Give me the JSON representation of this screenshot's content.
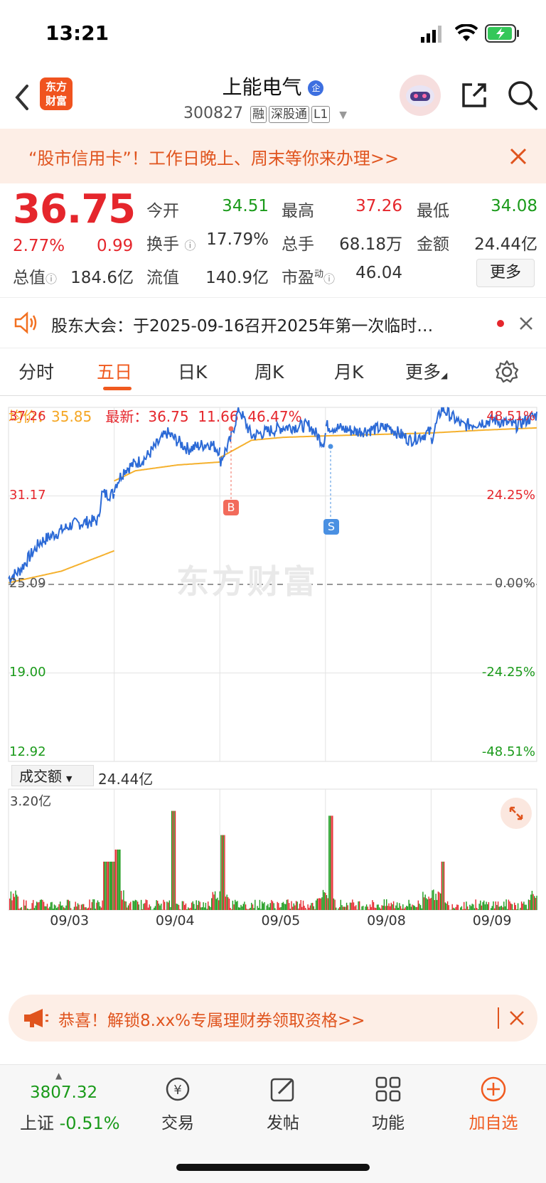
{
  "status_bar": {
    "time": "13:21"
  },
  "header": {
    "logo_text_line1": "东方",
    "logo_text_line2": "财富",
    "stock_name": "上能电气",
    "stock_code": "300827",
    "tags": [
      "融",
      "深股通",
      "L1"
    ]
  },
  "banner": {
    "text": "“股市信用卡”！工作日晚上、周末等你来办理>>"
  },
  "quote": {
    "price": "36.75",
    "change_pct": "2.77%",
    "change": "0.99",
    "open_label": "今开",
    "open": "34.51",
    "high_label": "最高",
    "high": "37.26",
    "low_label": "最低",
    "low": "34.08",
    "turnover_label": "换手",
    "turnover": "17.79%",
    "volume_label": "总手",
    "volume": "68.18万",
    "amount_label": "金额",
    "amount": "24.44亿",
    "mktcap_label": "总值",
    "mktcap": "184.6亿",
    "float_label": "流值",
    "float": "140.9亿",
    "pe_label": "市盈",
    "pe_sup": "动",
    "pe": "46.04",
    "more": "更多"
  },
  "notice": {
    "text": "股东大会：于2025-09-16召开2025年第一次临时…"
  },
  "tabs": [
    {
      "label": "分时"
    },
    {
      "label": "五日"
    },
    {
      "label": "日K"
    },
    {
      "label": "周K"
    },
    {
      "label": "月K"
    },
    {
      "label": "更多"
    }
  ],
  "chart_info": {
    "avg_label": "均价：",
    "avg": "35.85",
    "latest_label": "最新：",
    "latest": "36.75",
    "latest_change": "11.66",
    "latest_pct": "46.47%",
    "watermark": "东方财富",
    "y_left": [
      "37.26",
      "31.17",
      "25.09",
      "19.00",
      "12.92"
    ],
    "y_right": [
      "48.51%",
      "24.25%",
      "0.00%",
      "-24.25%",
      "-48.51%"
    ],
    "buy_marker": "B",
    "sell_marker": "S",
    "volume_selector": "成交额",
    "volume_total": "24.44亿",
    "volume_max": "3.20亿",
    "dates": [
      "09/03",
      "09/04",
      "09/05",
      "09/08",
      "09/09"
    ],
    "colors": {
      "price_line": "#2c6ad6",
      "avg_line": "#f5b12e",
      "up": "#e5262c",
      "down": "#1a9a1a"
    }
  },
  "chart_data": {
    "type": "line",
    "x": [
      "09/03",
      "09/04",
      "09/05",
      "09/08",
      "09/09"
    ],
    "series": [],
    "ylim": [
      12.92,
      37.26
    ],
    "prev_close": 25.09,
    "approx_day_close": [
      29.2,
      34.0,
      35.8,
      35.6,
      36.75
    ],
    "volume_ylim": [
      0,
      3.2
    ],
    "volume_unit": "亿"
  },
  "promo": {
    "text": "恭喜！解锁8.xx%专属理财券领取资格>>"
  },
  "bottom_nav": {
    "index_value": "3807.32",
    "index_name": "上证",
    "index_change": "-0.51%",
    "items": [
      {
        "label": "交易"
      },
      {
        "label": "发帖"
      },
      {
        "label": "功能"
      },
      {
        "label": "加自选"
      }
    ]
  }
}
